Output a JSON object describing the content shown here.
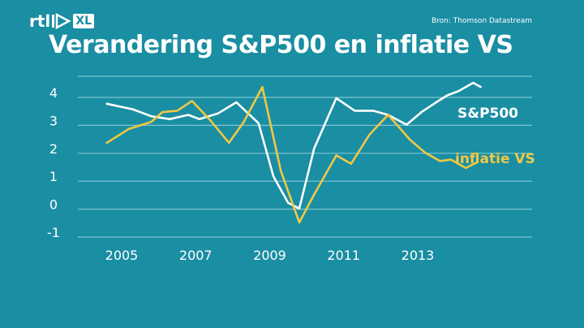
{
  "broadcaster": {
    "logo_main": "rtl",
    "logo_sub": "XL"
  },
  "source": "Bron: Thomson Datastream",
  "chart_data": {
    "type": "line",
    "title": "Verandering S&P500 en inflatie VS",
    "xlabel": "",
    "ylabel": "",
    "xlim": [
      2003.6,
      2016.0
    ],
    "ylim": [
      -1.2,
      4.5
    ],
    "x_ticks": [
      "2005",
      "2007",
      "2009",
      "2011",
      "2013"
    ],
    "y_ticks": [
      "4",
      "3",
      "2",
      "1",
      "0",
      "-1"
    ],
    "grid": true,
    "legend": "inline-right",
    "series": [
      {
        "name": "S&P500",
        "color": "#ffffff",
        "x": [
          2004.6,
          2005.3,
          2005.8,
          2006.3,
          2006.8,
          2007.1,
          2007.6,
          2008.1,
          2008.7,
          2009.1,
          2009.5,
          2009.8,
          2010.2,
          2010.8,
          2011.3,
          2011.8,
          2012.2,
          2012.7,
          2013.1,
          2013.5,
          2013.8,
          2014.1,
          2014.5,
          2014.7
        ],
        "values": [
          3.6,
          3.4,
          3.15,
          3.05,
          3.2,
          3.05,
          3.25,
          3.65,
          2.9,
          1.0,
          0.05,
          -0.15,
          2.0,
          3.8,
          3.35,
          3.35,
          3.2,
          2.85,
          3.3,
          3.65,
          3.9,
          4.05,
          4.35,
          4.2
        ]
      },
      {
        "name": "inflatie VS",
        "color": "#f0c844",
        "x": [
          2004.6,
          2005.2,
          2005.8,
          2006.1,
          2006.5,
          2006.9,
          2007.4,
          2007.9,
          2008.3,
          2008.8,
          2009.3,
          2009.8,
          2010.2,
          2010.8,
          2011.2,
          2011.7,
          2012.2,
          2012.8,
          2013.2,
          2013.6,
          2013.9,
          2014.3,
          2014.6
        ],
        "values": [
          2.2,
          2.7,
          2.95,
          3.3,
          3.35,
          3.7,
          3.0,
          2.2,
          2.95,
          4.2,
          1.2,
          -0.65,
          0.35,
          1.75,
          1.45,
          2.5,
          3.2,
          2.3,
          1.85,
          1.55,
          1.6,
          1.3,
          1.5
        ]
      }
    ]
  }
}
